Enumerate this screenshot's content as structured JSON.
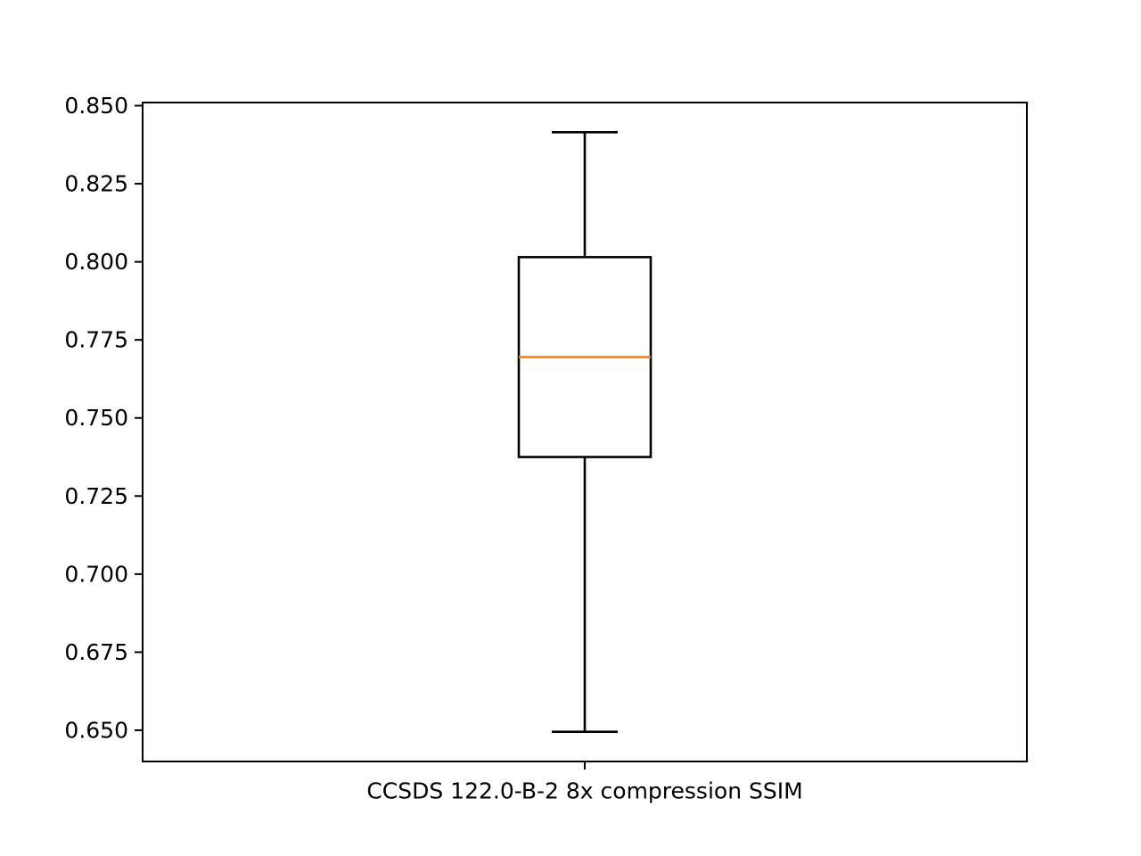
{
  "chart_data": {
    "type": "box",
    "title": "",
    "ylabel": "",
    "xlabel": "",
    "categories": [
      "CCSDS 122.0-B-2 8x compression SSIM"
    ],
    "boxes": [
      {
        "whisker_low": 0.6495,
        "q1": 0.7375,
        "median": 0.7695,
        "q3": 0.8015,
        "whisker_high": 0.8415
      }
    ],
    "ylim": [
      0.64,
      0.851
    ],
    "yticks": [
      0.65,
      0.675,
      0.7,
      0.725,
      0.75,
      0.775,
      0.8,
      0.825,
      0.85
    ],
    "ytick_labels": [
      "0.650",
      "0.675",
      "0.700",
      "0.725",
      "0.750",
      "0.775",
      "0.800",
      "0.825",
      "0.850"
    ],
    "grid": false,
    "colors": {
      "box": "#000000",
      "median": "#ff7f0e",
      "axes": "#000000"
    }
  }
}
